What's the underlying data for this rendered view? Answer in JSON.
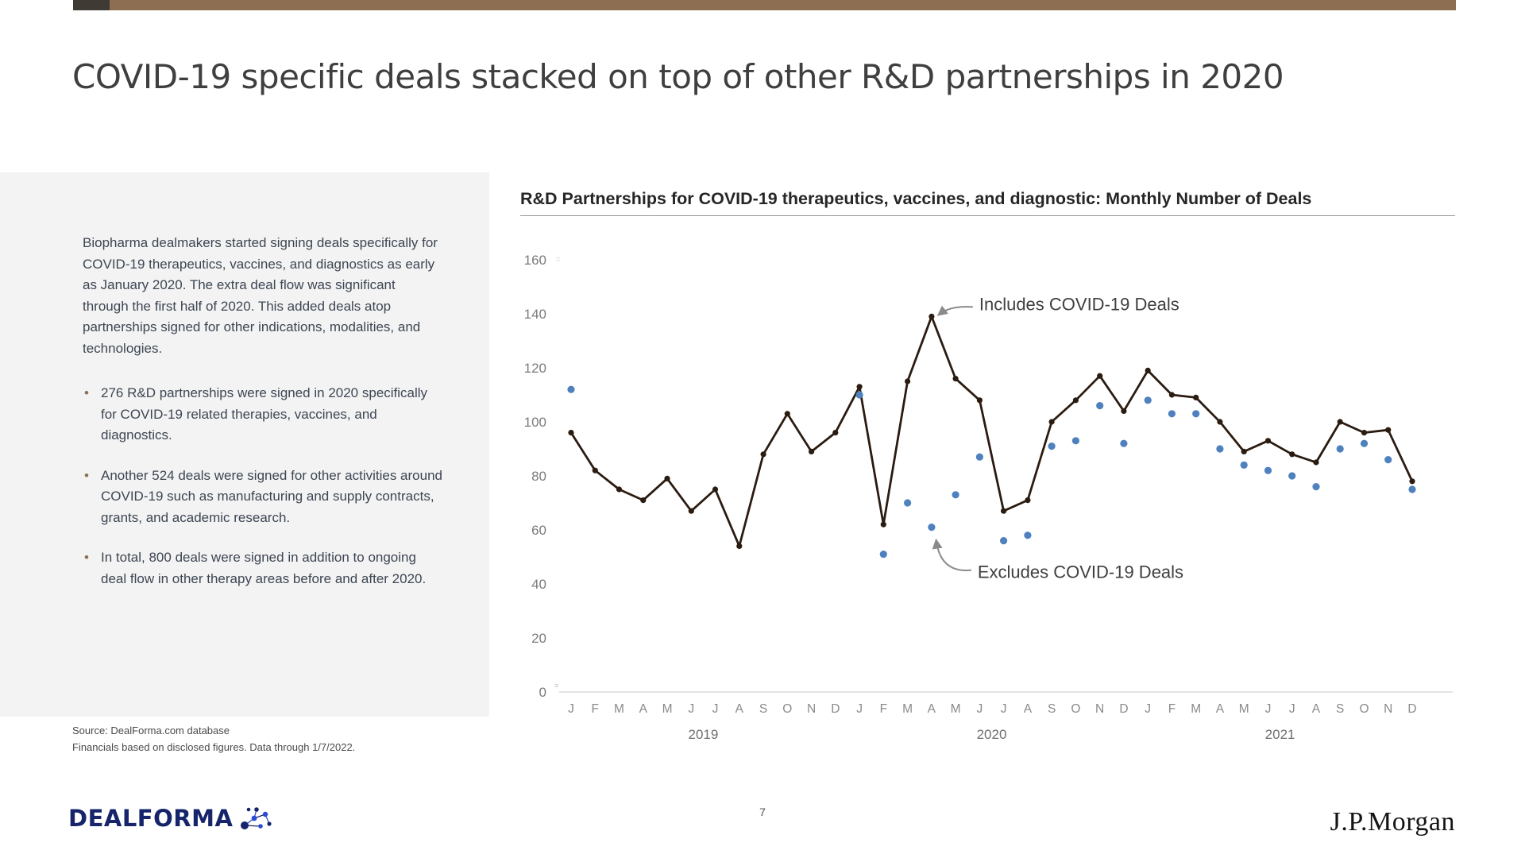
{
  "slide": {
    "title": "COVID-19 specific deals stacked on top of other R&D partnerships in 2020",
    "page_number": "7"
  },
  "accent_colors": {
    "top_bar_brown": "#8D6E53",
    "top_bar_dark": "#3F3A34",
    "bullet_brown": "#8D6E53",
    "line_dark": "#2B1B10",
    "dot_blue": "#4E81BD",
    "dealforma_navy": "#16246B"
  },
  "left_panel": {
    "paragraph": "Biopharma dealmakers started signing deals specifically for COVID-19 therapeutics, vaccines, and diagnostics as early as January 2020. The extra deal flow was significant through the first half of 2020. This added deals atop partnerships signed for other indications, modalities, and technologies.",
    "bullets": [
      "276 R&D partnerships were signed in 2020 specifically for COVID-19 related therapies, vaccines, and diagnostics.",
      "Another 524 deals were signed for other activities around COVID-19 such as manufacturing and supply contracts, grants, and academic research.",
      "In total, 800 deals were signed in addition to ongoing deal flow in other therapy areas before and after 2020."
    ],
    "source_line1": "Source: DealForma.com database",
    "source_line2": "Financials based on disclosed figures. Data through 1/7/2022."
  },
  "footer": {
    "dealforma_logo_text": "DEALFORMA",
    "jpmorgan_logo_text": "J.P.Morgan"
  },
  "chart_data": {
    "type": "line",
    "title": "R&D Partnerships for COVID-19 therapeutics, vaccines, and diagnostic: Monthly Number of Deals",
    "xlabel": "",
    "ylabel": "",
    "ylim": [
      0,
      160
    ],
    "ytick_step": 20,
    "grid": false,
    "legend_position": "annotations-on-chart",
    "month_labels": [
      "J",
      "F",
      "M",
      "A",
      "M",
      "J",
      "J",
      "A",
      "S",
      "O",
      "N",
      "D",
      "J",
      "F",
      "M",
      "A",
      "M",
      "J",
      "J",
      "A",
      "S",
      "O",
      "N",
      "D",
      "J",
      "F",
      "M",
      "A",
      "M",
      "J",
      "J",
      "A",
      "S",
      "O",
      "N",
      "D"
    ],
    "year_labels": [
      "2019",
      "2020",
      "2021"
    ],
    "series": [
      {
        "name": "Includes COVID-19 Deals",
        "type": "line",
        "color": "#2B1B10",
        "values": [
          96,
          82,
          75,
          71,
          79,
          67,
          75,
          54,
          88,
          103,
          89,
          96,
          113,
          62,
          115,
          139,
          116,
          108,
          67,
          71,
          100,
          108,
          117,
          104,
          119,
          110,
          109,
          100,
          89,
          93,
          88,
          85,
          100,
          96,
          97,
          78
        ]
      },
      {
        "name": "Excludes COVID-19 Deals",
        "type": "scatter",
        "color": "#4E81BD",
        "values": [
          112,
          null,
          null,
          null,
          null,
          null,
          null,
          null,
          null,
          null,
          null,
          null,
          110,
          51,
          70,
          61,
          73,
          87,
          56,
          58,
          91,
          93,
          106,
          92,
          108,
          103,
          103,
          90,
          84,
          82,
          80,
          76,
          90,
          92,
          86,
          75
        ]
      }
    ],
    "annotations": [
      {
        "label": "Includes COVID-19 Deals",
        "anchor_month": "2020-04",
        "anchor_value": 139
      },
      {
        "label": "Excludes COVID-19 Deals",
        "anchor_month": "2020-04",
        "anchor_value": 61
      }
    ]
  }
}
